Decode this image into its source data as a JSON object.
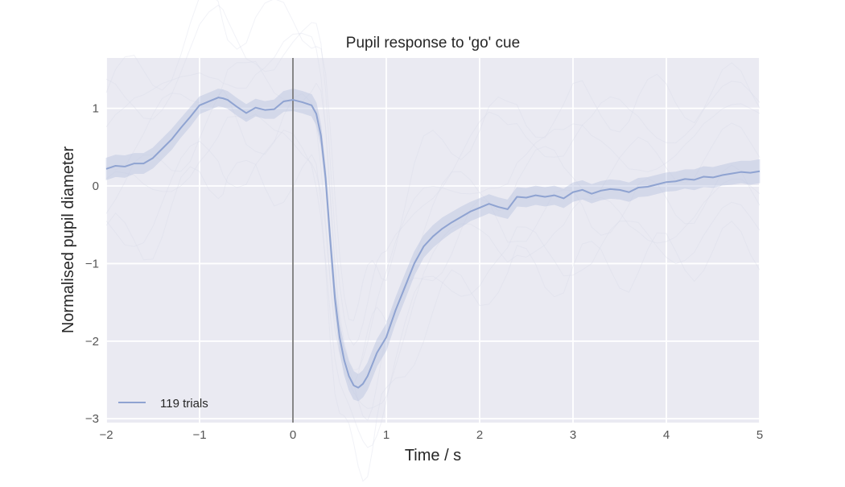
{
  "chart_data": {
    "type": "line",
    "title": "Pupil response to 'go' cue",
    "xlabel": "Time / s",
    "ylabel": "Normalised pupil diameter",
    "xlim": [
      -2,
      5
    ],
    "ylim": [
      -3.05,
      1.65
    ],
    "xticks": [
      -2,
      -1,
      0,
      1,
      2,
      3,
      4,
      5
    ],
    "xtick_labels": [
      "−2",
      "−1",
      "0",
      "1",
      "2",
      "3",
      "4",
      "5"
    ],
    "yticks": [
      -3,
      -2,
      -1,
      0,
      1
    ],
    "ytick_labels": [
      "−3",
      "−2",
      "−1",
      "0",
      "1"
    ],
    "grid": true,
    "legend_position": "bottom-left",
    "vline_x": 0,
    "series": [
      {
        "name": "119 trials",
        "color": "#8fa3d1",
        "band_color": "#b9c3e0",
        "x": [
          -2.0,
          -1.9,
          -1.8,
          -1.7,
          -1.6,
          -1.5,
          -1.4,
          -1.3,
          -1.2,
          -1.1,
          -1.0,
          -0.9,
          -0.8,
          -0.75,
          -0.7,
          -0.6,
          -0.5,
          -0.4,
          -0.3,
          -0.2,
          -0.1,
          0.0,
          0.1,
          0.2,
          0.25,
          0.3,
          0.35,
          0.4,
          0.45,
          0.5,
          0.55,
          0.6,
          0.65,
          0.7,
          0.75,
          0.8,
          0.85,
          0.9,
          0.95,
          1.0,
          1.1,
          1.2,
          1.3,
          1.4,
          1.5,
          1.6,
          1.7,
          1.8,
          1.9,
          2.0,
          2.1,
          2.2,
          2.3,
          2.4,
          2.5,
          2.6,
          2.7,
          2.8,
          2.9,
          3.0,
          3.1,
          3.2,
          3.3,
          3.4,
          3.5,
          3.6,
          3.7,
          3.8,
          3.9,
          4.0,
          4.1,
          4.2,
          4.3,
          4.4,
          4.5,
          4.6,
          4.7,
          4.8,
          4.9,
          5.0
        ],
        "y": [
          0.22,
          0.26,
          0.25,
          0.29,
          0.29,
          0.36,
          0.48,
          0.6,
          0.75,
          0.89,
          1.04,
          1.09,
          1.14,
          1.13,
          1.11,
          1.02,
          0.94,
          1.01,
          0.98,
          0.99,
          1.09,
          1.11,
          1.08,
          1.04,
          0.93,
          0.65,
          0.1,
          -0.7,
          -1.45,
          -1.95,
          -2.25,
          -2.45,
          -2.57,
          -2.6,
          -2.55,
          -2.45,
          -2.3,
          -2.15,
          -2.05,
          -1.95,
          -1.6,
          -1.3,
          -1.0,
          -0.78,
          -0.65,
          -0.55,
          -0.47,
          -0.4,
          -0.33,
          -0.28,
          -0.23,
          -0.27,
          -0.3,
          -0.14,
          -0.15,
          -0.12,
          -0.14,
          -0.12,
          -0.16,
          -0.08,
          -0.05,
          -0.1,
          -0.06,
          -0.04,
          -0.05,
          -0.08,
          -0.02,
          -0.01,
          0.02,
          0.05,
          0.06,
          0.09,
          0.08,
          0.12,
          0.11,
          0.14,
          0.16,
          0.18,
          0.17,
          0.19
        ],
        "err": [
          0.14,
          0.14,
          0.14,
          0.13,
          0.13,
          0.13,
          0.13,
          0.13,
          0.12,
          0.12,
          0.11,
          0.11,
          0.11,
          0.11,
          0.11,
          0.11,
          0.11,
          0.11,
          0.11,
          0.12,
          0.13,
          0.14,
          0.14,
          0.14,
          0.14,
          0.13,
          0.12,
          0.14,
          0.16,
          0.17,
          0.18,
          0.18,
          0.18,
          0.17,
          0.17,
          0.17,
          0.17,
          0.17,
          0.17,
          0.17,
          0.16,
          0.16,
          0.15,
          0.14,
          0.14,
          0.14,
          0.13,
          0.13,
          0.12,
          0.12,
          0.12,
          0.12,
          0.12,
          0.12,
          0.12,
          0.12,
          0.12,
          0.12,
          0.12,
          0.12,
          0.12,
          0.12,
          0.12,
          0.12,
          0.12,
          0.12,
          0.12,
          0.12,
          0.12,
          0.12,
          0.12,
          0.12,
          0.13,
          0.13,
          0.13,
          0.13,
          0.14,
          0.14,
          0.15,
          0.15
        ]
      }
    ]
  },
  "colors": {
    "plot_background": "#eaeaf2",
    "grid": "#ffffff",
    "vline": "#7a7a7a"
  }
}
